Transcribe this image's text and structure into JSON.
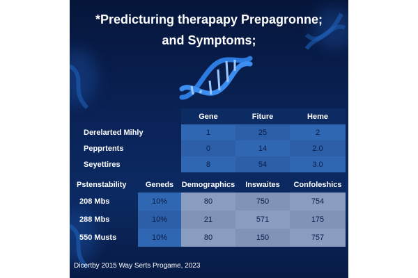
{
  "title_line1": "*Predicturing therapapy Prepagronne;",
  "title_line2": "and Symptoms;",
  "icons": [
    "dna-helix-icon"
  ],
  "colors": {
    "background": "#0a2358",
    "cell_blue": "#3067b3",
    "cell_slate": "#8a9cc0",
    "text": "#ffffff"
  },
  "table1": {
    "headers": [
      "Gene",
      "Fiture",
      "Heme"
    ],
    "rows": [
      {
        "label": "Derelarted Mihly",
        "values": [
          "1",
          "25",
          "2"
        ]
      },
      {
        "label": "Pepprtents",
        "values": [
          "0",
          "14",
          "2.0"
        ]
      },
      {
        "label": "Seyettires",
        "values": [
          "8",
          "54",
          "3.0"
        ]
      }
    ]
  },
  "table2": {
    "headers": [
      "Pstenstability",
      "Geneds",
      "Demographics",
      "Inswaites",
      "Confoleshics"
    ],
    "rows": [
      {
        "label": "208 Mbs",
        "values": [
          "10%",
          "80",
          "750",
          "754"
        ]
      },
      {
        "label": "288 Mbs",
        "values": [
          "10%",
          "21",
          "571",
          "175"
        ]
      },
      {
        "label": "550 Musts",
        "values": [
          "10%",
          "80",
          "150",
          "757"
        ]
      }
    ]
  },
  "footer": "Dicertby 2015 Way Serts Progame, 2023"
}
